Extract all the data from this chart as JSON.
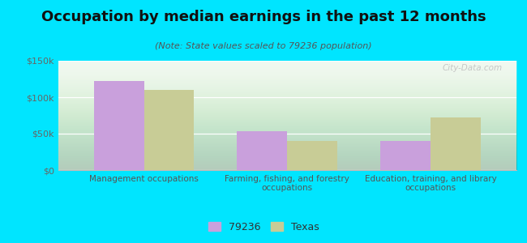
{
  "title": "Occupation by median earnings in the past 12 months",
  "subtitle": "(Note: State values scaled to 79236 population)",
  "categories": [
    "Management occupations",
    "Farming, fishing, and forestry\noccupations",
    "Education, training, and library\noccupations"
  ],
  "series_79236": [
    122000,
    53000,
    40000
  ],
  "series_texas": [
    110000,
    40000,
    72000
  ],
  "bar_color_79236": "#c9a0dc",
  "bar_color_texas": "#c8cc96",
  "background_outer": "#00e5ff",
  "background_inner": "#f0f8f0",
  "ylim": [
    0,
    150000
  ],
  "yticks": [
    0,
    50000,
    100000,
    150000
  ],
  "ytick_labels": [
    "$0",
    "$50k",
    "$100k",
    "$150k"
  ],
  "legend_label_1": "79236",
  "legend_label_2": "Texas",
  "watermark": "City-Data.com",
  "bar_width": 0.35,
  "title_fontsize": 13,
  "subtitle_fontsize": 8,
  "axis_label_fontsize": 7.5,
  "tick_fontsize": 8,
  "legend_fontsize": 9
}
